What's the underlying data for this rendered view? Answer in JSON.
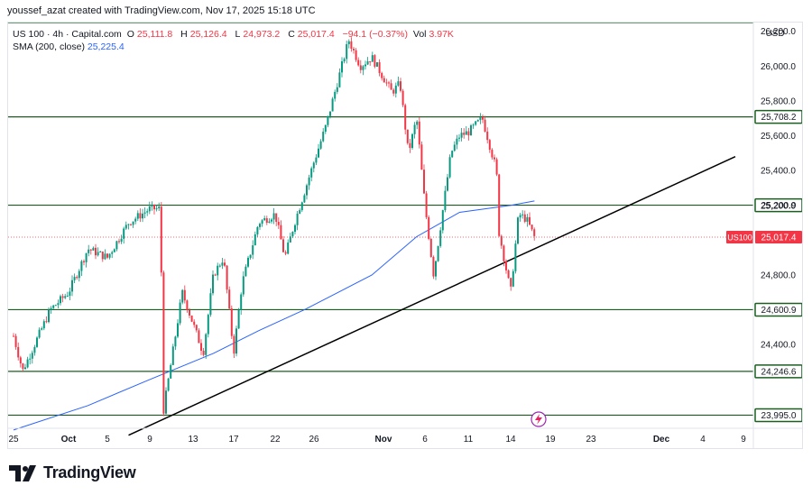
{
  "attribution": "youssef_azat created with TradingView.com, Nov 17, 2025 15:18 UTC",
  "legend": {
    "symbol": "US 100 · 4h · Capital.com",
    "o_label": "O",
    "o_value": "25,111.8",
    "h_label": "H",
    "h_value": "25,126.4",
    "l_label": "L",
    "l_value": "24,973.2",
    "c_label": "C",
    "c_value": "25,017.4",
    "change": "−94.1 (−0.37%)",
    "vol_label": "Vol",
    "vol_value": "3.97K",
    "sma_label": "SMA (200, close)",
    "sma_value": "25,225.4"
  },
  "currency": "USD",
  "brand": "TradingView",
  "colors": {
    "up": "#089981",
    "down": "#f23645",
    "sma": "#2962ff",
    "level": "#1b5e20",
    "trend": "#000000",
    "last_badge": "#f23645"
  },
  "chart_data": {
    "type": "candlestick",
    "symbol": "US 100",
    "timeframe": "4h",
    "ylim": [
      23930,
      26250
    ],
    "y_ticks": [
      24400,
      24800,
      25200,
      25400,
      25600,
      25800,
      26000,
      26200
    ],
    "y_tick_labels": [
      "24,400.0",
      "24,800.0",
      "25,200.0",
      "25,400.0",
      "25,600.0",
      "25,800.0",
      "26,000.0",
      "26,200.0"
    ],
    "x_ticks": [
      "25",
      "Oct",
      "5",
      "9",
      "13",
      "17",
      "22",
      "26",
      "Nov",
      "6",
      "11",
      "14",
      "19",
      "23",
      "Dec",
      "4",
      "9"
    ],
    "horizontal_levels": [
      {
        "value": 25708.2,
        "label": "25,708.2"
      },
      {
        "value": 25200.9,
        "label": "25,200.9"
      },
      {
        "value": 24600.9,
        "label": "24,600.9"
      },
      {
        "value": 24246.6,
        "label": "24,246.6"
      },
      {
        "value": 23995.0,
        "label": "23,995.0"
      }
    ],
    "top_level": 26250,
    "last_price": {
      "symbol": "US100",
      "value": 25017.4,
      "label": "25,017.4"
    },
    "trendline": {
      "start": {
        "date": "2025-10-07",
        "value": 23880
      },
      "end": {
        "date": "2025-12-08",
        "value": 25480
      }
    },
    "key_points": [
      {
        "date": "2025-09-25",
        "value": 24450
      },
      {
        "date": "2025-09-26",
        "value": 24250
      },
      {
        "date": "2025-09-29",
        "value": 24600
      },
      {
        "date": "2025-10-01",
        "value": 24700
      },
      {
        "date": "2025-10-03",
        "value": 24950
      },
      {
        "date": "2025-10-05",
        "value": 24900
      },
      {
        "date": "2025-10-07",
        "value": 25100
      },
      {
        "date": "2025-10-09",
        "value": 25180
      },
      {
        "date": "2025-10-10",
        "value": 25180
      },
      {
        "date": "2025-10-10",
        "value": 24000
      },
      {
        "date": "2025-10-12",
        "value": 24700
      },
      {
        "date": "2025-10-14",
        "value": 24350
      },
      {
        "date": "2025-10-15",
        "value": 24800
      },
      {
        "date": "2025-10-16",
        "value": 24900
      },
      {
        "date": "2025-10-17",
        "value": 24350
      },
      {
        "date": "2025-10-18",
        "value": 24750
      },
      {
        "date": "2025-10-20",
        "value": 25100
      },
      {
        "date": "2025-10-22",
        "value": 25150
      },
      {
        "date": "2025-10-23",
        "value": 24900
      },
      {
        "date": "2025-10-24",
        "value": 25100
      },
      {
        "date": "2025-10-26",
        "value": 25450
      },
      {
        "date": "2025-10-27",
        "value": 25650
      },
      {
        "date": "2025-10-28",
        "value": 25900
      },
      {
        "date": "2025-10-29",
        "value": 26150
      },
      {
        "date": "2025-10-30",
        "value": 26000
      },
      {
        "date": "2025-10-31",
        "value": 26050
      },
      {
        "date": "2025-11-02",
        "value": 25850
      },
      {
        "date": "2025-11-03",
        "value": 25900
      },
      {
        "date": "2025-11-04",
        "value": 25500
      },
      {
        "date": "2025-11-05",
        "value": 25700
      },
      {
        "date": "2025-11-06",
        "value": 25200
      },
      {
        "date": "2025-11-07",
        "value": 24800
      },
      {
        "date": "2025-11-09",
        "value": 25500
      },
      {
        "date": "2025-11-10",
        "value": 25600
      },
      {
        "date": "2025-11-11",
        "value": 25620
      },
      {
        "date": "2025-11-12",
        "value": 25700
      },
      {
        "date": "2025-11-13",
        "value": 25400
      },
      {
        "date": "2025-11-13",
        "value": 25050
      },
      {
        "date": "2025-11-14",
        "value": 24700
      },
      {
        "date": "2025-11-15",
        "value": 25150
      },
      {
        "date": "2025-11-16",
        "value": 25120
      },
      {
        "date": "2025-11-17",
        "value": 25017
      }
    ],
    "sma": [
      {
        "date": "2025-09-25",
        "value": 23910
      },
      {
        "date": "2025-10-03",
        "value": 24050
      },
      {
        "date": "2025-10-09",
        "value": 24200
      },
      {
        "date": "2025-10-15",
        "value": 24350
      },
      {
        "date": "2025-10-20",
        "value": 24480
      },
      {
        "date": "2025-10-25",
        "value": 24600
      },
      {
        "date": "2025-10-31",
        "value": 24800
      },
      {
        "date": "2025-11-05",
        "value": 25020
      },
      {
        "date": "2025-11-10",
        "value": 25160
      },
      {
        "date": "2025-11-14",
        "value": 25200
      },
      {
        "date": "2025-11-17",
        "value": 25225
      }
    ]
  }
}
